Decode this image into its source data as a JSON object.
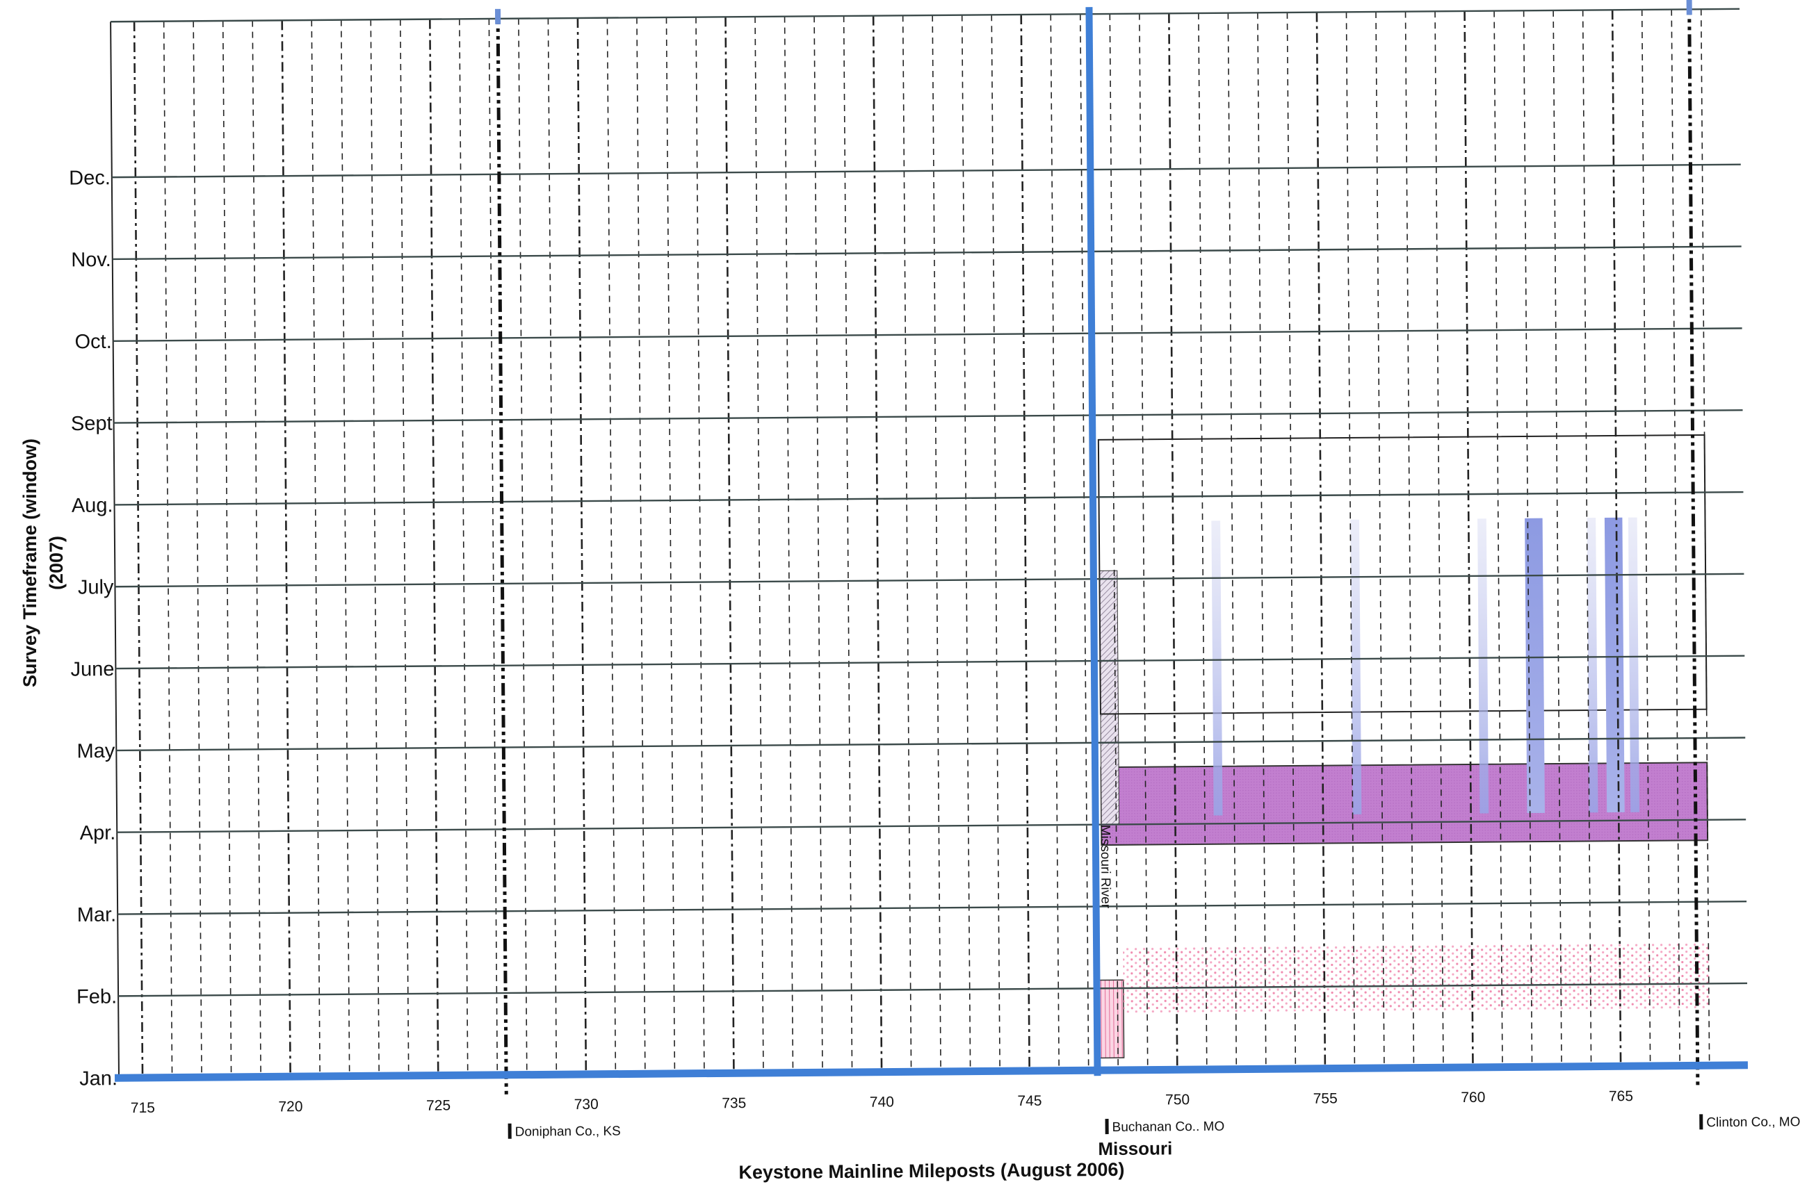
{
  "chart_data": {
    "type": "timeline",
    "title": "",
    "xlabel": "Keystone Mainline Mileposts (August 2006)",
    "ylabel": "Survey Timeframe (window)",
    "ylabel_year": "(2007)",
    "xlim": [
      714.2,
      769.3
    ],
    "ylim": [
      0,
      12
    ],
    "x_ticks": [
      715,
      720,
      725,
      730,
      735,
      740,
      745,
      750,
      755,
      760,
      765
    ],
    "y_ticks": [
      {
        "label": "Jan.",
        "value": 0
      },
      {
        "label": "Feb.",
        "value": 1
      },
      {
        "label": "Mar.",
        "value": 2
      },
      {
        "label": "Apr.",
        "value": 3
      },
      {
        "label": "May",
        "value": 4
      },
      {
        "label": "June",
        "value": 5
      },
      {
        "label": "July",
        "value": 6
      },
      {
        "label": "Aug.",
        "value": 7
      },
      {
        "label": "Sept",
        "value": 8
      },
      {
        "label": "Oct.",
        "value": 9
      },
      {
        "label": "Nov.",
        "value": 10
      },
      {
        "label": "Dec.",
        "value": 11
      }
    ],
    "grid": true,
    "boundaries": [
      {
        "milepost": 727.3,
        "label": "Doniphan Co., KS",
        "style": "county"
      },
      {
        "milepost": 747.5,
        "label": "Buchanan Co.. MO",
        "style": "state",
        "state_label": "Missouri"
      },
      {
        "milepost": 767.6,
        "label": "Clinton Co., MO",
        "style": "county"
      }
    ],
    "river": {
      "milepost": 747.3,
      "label": "Missouri River"
    },
    "windows": [
      {
        "x0": 747.3,
        "x1": 748.2,
        "y0": 0.15,
        "y1": 1.1,
        "kind": "pink-hatched"
      },
      {
        "x0": 748.2,
        "x1": 768.0,
        "y0": 0.7,
        "y1": 1.5,
        "kind": "pink-dotted"
      },
      {
        "x0": 747.5,
        "x1": 768.0,
        "y0": 2.75,
        "y1": 3.7,
        "kind": "magenta"
      },
      {
        "x0": 747.5,
        "x1": 748.1,
        "y0": 3.0,
        "y1": 6.1,
        "kind": "hatched"
      },
      {
        "x0": 747.5,
        "x1": 768.0,
        "y0": 4.35,
        "y1": 7.7,
        "kind": "outline"
      },
      {
        "x0": 751.3,
        "x1": 751.6,
        "y0": 3.1,
        "y1": 6.7,
        "kind": "blue-fade"
      },
      {
        "x0": 756.0,
        "x1": 756.3,
        "y0": 3.1,
        "y1": 6.7,
        "kind": "blue-fade"
      },
      {
        "x0": 760.3,
        "x1": 760.6,
        "y0": 3.1,
        "y1": 6.7,
        "kind": "blue-fade"
      },
      {
        "x0": 761.9,
        "x1": 762.5,
        "y0": 3.1,
        "y1": 6.7,
        "kind": "blue-solid"
      },
      {
        "x0": 764.0,
        "x1": 764.3,
        "y0": 3.1,
        "y1": 6.7,
        "kind": "blue-fade"
      },
      {
        "x0": 764.6,
        "x1": 765.2,
        "y0": 3.1,
        "y1": 6.7,
        "kind": "blue-solid"
      },
      {
        "x0": 765.4,
        "x1": 765.7,
        "y0": 3.1,
        "y1": 6.7,
        "kind": "blue-fade"
      }
    ]
  }
}
